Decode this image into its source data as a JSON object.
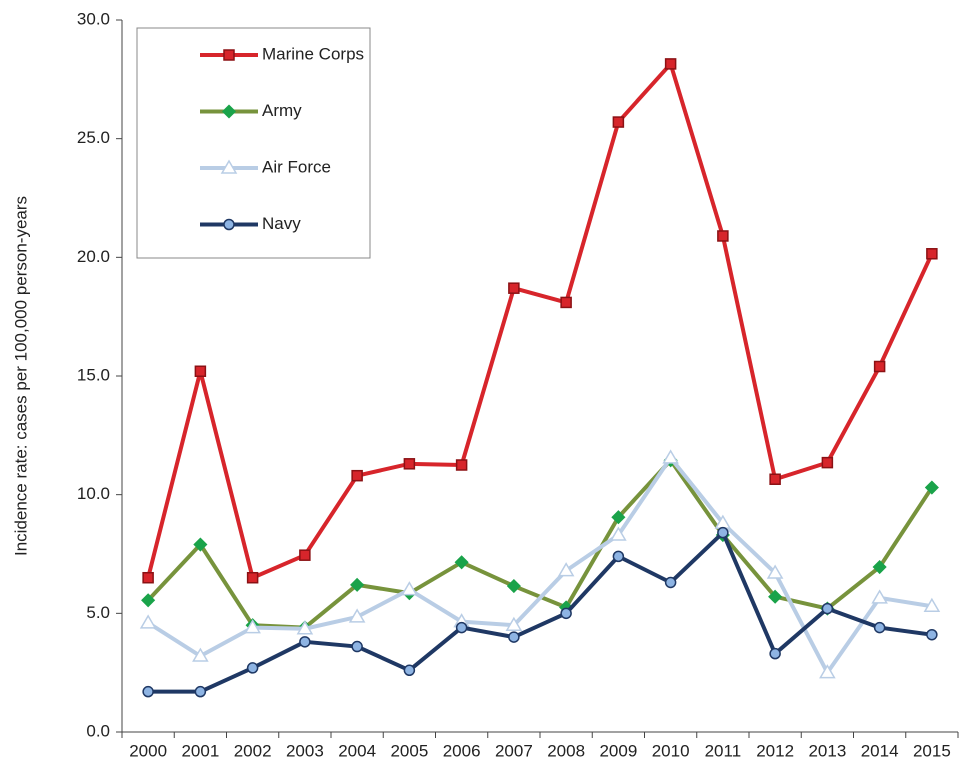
{
  "chart_data": {
    "type": "line",
    "y_label": "Incidence rate: cases per 100,000 person-years",
    "categories": [
      "2000",
      "2001",
      "2002",
      "2003",
      "2004",
      "2005",
      "2006",
      "2007",
      "2008",
      "2009",
      "2010",
      "2011",
      "2012",
      "2013",
      "2014",
      "2015"
    ],
    "series": [
      {
        "name": "Marine Corps",
        "color": "#d7252b",
        "marker": "square",
        "marker_fill": "#d7252b",
        "marker_stroke": "#8b1114",
        "values": [
          6.5,
          15.2,
          6.5,
          7.45,
          10.8,
          11.3,
          11.25,
          18.7,
          18.1,
          25.7,
          28.15,
          20.9,
          10.65,
          11.35,
          15.4,
          20.15
        ]
      },
      {
        "name": "Army",
        "color": "#77933c",
        "marker": "diamond",
        "marker_fill": "#1aa34a",
        "marker_stroke": "#1aa34a",
        "values": [
          5.55,
          7.9,
          4.5,
          4.4,
          6.2,
          5.85,
          7.15,
          6.15,
          5.25,
          9.05,
          11.45,
          8.3,
          5.7,
          5.2,
          6.95,
          10.3
        ]
      },
      {
        "name": "Air Force",
        "color": "#b9cde5",
        "marker": "triangle",
        "marker_fill": "#ffffff",
        "marker_stroke": "#b9cde5",
        "values": [
          4.6,
          3.2,
          4.4,
          4.35,
          4.85,
          6.0,
          4.65,
          4.5,
          6.8,
          8.3,
          11.55,
          8.8,
          6.7,
          2.5,
          5.65,
          5.3
        ]
      },
      {
        "name": "Navy",
        "color": "#1f3864",
        "marker": "circle",
        "marker_fill": "#8eb4e3",
        "marker_stroke": "#1f3864",
        "values": [
          1.7,
          1.7,
          2.7,
          3.8,
          3.6,
          2.6,
          4.4,
          4.0,
          5.0,
          7.4,
          6.3,
          8.4,
          3.3,
          5.2,
          4.4,
          4.1
        ]
      }
    ],
    "ylim": [
      0,
      30
    ],
    "yticks": [
      {
        "value": 0,
        "label": "0.0"
      },
      {
        "value": 5,
        "label": "5.0"
      },
      {
        "value": 10,
        "label": "10.0"
      },
      {
        "value": 15,
        "label": "15.0"
      },
      {
        "value": 20,
        "label": "20.0"
      },
      {
        "value": 25,
        "label": "25.0"
      },
      {
        "value": 30,
        "label": "30.0"
      }
    ],
    "legend": "top-left"
  }
}
